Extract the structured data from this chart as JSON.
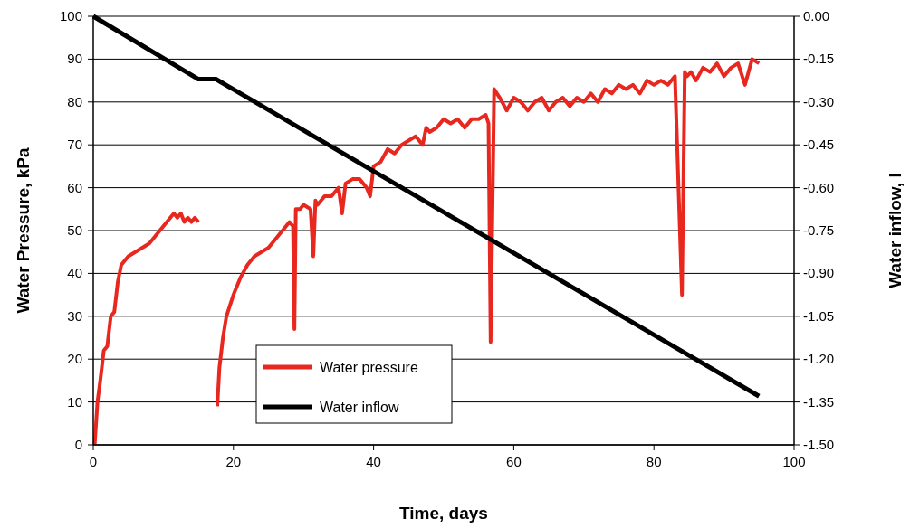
{
  "chart_data": {
    "type": "line",
    "xlabel": "Time, days",
    "ylabel": "Water Pressure, kPa",
    "y2label": "Water inflow, l",
    "xlim": [
      0,
      100
    ],
    "xticks": [
      0,
      20,
      40,
      60,
      80,
      100
    ],
    "ylim": [
      0,
      100
    ],
    "yticks": [
      0,
      10,
      20,
      30,
      40,
      50,
      60,
      70,
      80,
      90,
      100
    ],
    "y2lim": [
      -1.5,
      0
    ],
    "y2ticks": [
      {
        "value": -1.5,
        "label": "-1.50"
      },
      {
        "value": -1.35,
        "label": "-1.35"
      },
      {
        "value": -1.2,
        "label": "-1.20"
      },
      {
        "value": -1.05,
        "label": "-1.05"
      },
      {
        "value": -0.9,
        "label": "-0.90"
      },
      {
        "value": -0.75,
        "label": "-0.75"
      },
      {
        "value": -0.6,
        "label": "-0.60"
      },
      {
        "value": -0.45,
        "label": "-0.45"
      },
      {
        "value": -0.3,
        "label": "-0.30"
      },
      {
        "value": -0.15,
        "label": "-0.15"
      },
      {
        "value": 0,
        "label": "0.00"
      }
    ],
    "grid": "y",
    "legend": "bottom left",
    "series": [
      {
        "name": "Water pressure",
        "color": "#e8271f",
        "x": [
          0.2,
          0.6,
          1,
          1.5,
          2,
          2.5,
          3,
          3.5,
          4,
          4.5,
          5,
          6,
          7,
          8,
          9,
          10,
          11,
          11.5,
          12,
          12.5,
          13,
          13.5,
          14,
          14.5,
          15,
          16,
          17.7,
          18,
          18.5,
          19,
          20,
          21,
          22,
          23,
          24,
          25,
          26,
          27,
          28,
          28.5,
          28.7,
          28.9,
          29.5,
          30,
          31,
          31.4,
          31.7,
          32,
          33,
          34,
          35,
          35.5,
          36,
          37,
          38,
          39,
          39.5,
          40,
          41,
          42,
          43,
          44,
          45,
          46,
          47,
          47.5,
          48,
          49,
          50,
          51,
          52,
          53,
          54,
          55,
          56,
          56.4,
          56.7,
          57.2,
          58,
          59,
          60,
          61,
          62,
          63,
          64,
          65,
          66,
          67,
          68,
          69,
          70,
          71,
          72,
          73,
          74,
          75,
          76,
          77,
          78,
          79,
          80,
          81,
          82,
          83,
          84,
          84.4,
          84.7,
          85.3,
          86,
          87,
          88,
          89,
          90,
          91,
          92,
          93,
          94,
          95
        ],
        "values": [
          0,
          10,
          15,
          22,
          23,
          30,
          31,
          38,
          42,
          43,
          44,
          45,
          46,
          47,
          49,
          51,
          53,
          54,
          53,
          54,
          52,
          53,
          52,
          53,
          52,
          null,
          9,
          18,
          25,
          30,
          35,
          39,
          42,
          44,
          45,
          46,
          48,
          50,
          52,
          51,
          27,
          55,
          55,
          56,
          55,
          44,
          57,
          56,
          58,
          58,
          60,
          54,
          61,
          62,
          62,
          60,
          58,
          65,
          66,
          69,
          68,
          70,
          71,
          72,
          70,
          74,
          73,
          74,
          76,
          75,
          76,
          74,
          76,
          76,
          77,
          75,
          24,
          83,
          81,
          78,
          81,
          80,
          78,
          80,
          81,
          78,
          80,
          81,
          79,
          81,
          80,
          82,
          80,
          83,
          82,
          84,
          83,
          84,
          82,
          85,
          84,
          85,
          84,
          86,
          35,
          87,
          86,
          87,
          85,
          88,
          87,
          89,
          86,
          88,
          89,
          84,
          90,
          89
        ]
      },
      {
        "name": "Water inflow",
        "color": "#000000",
        "axis": "y2",
        "x": [
          0,
          15,
          17.5,
          95
        ],
        "values": [
          0,
          -0.22,
          -0.22,
          -1.33
        ]
      }
    ]
  }
}
